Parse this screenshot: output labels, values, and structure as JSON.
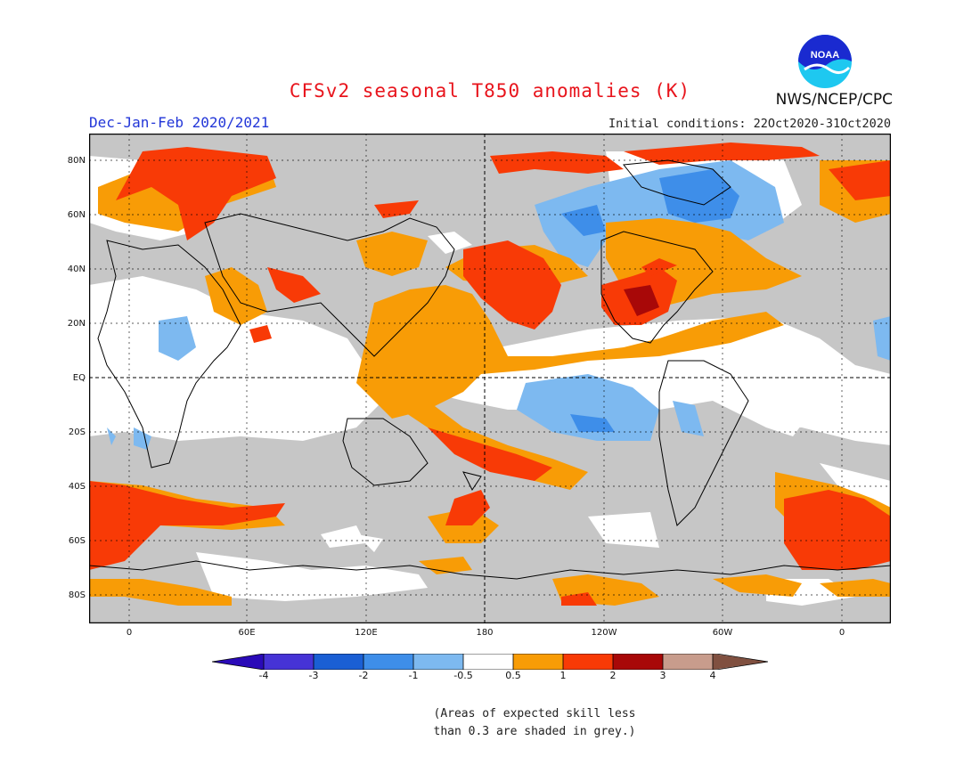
{
  "title": "CFSv2 seasonal T850 anomalies (K)",
  "season": "Dec-Jan-Feb 2020/2021",
  "initial_conditions": "Initial conditions: 22Oct2020-31Oct2020",
  "organization": "NWS/NCEP/CPC",
  "logo_text": "NOAA",
  "lat_labels": [
    "80N",
    "60N",
    "40N",
    "20N",
    "EQ",
    "20S",
    "40S",
    "60S",
    "80S"
  ],
  "lon_labels": [
    "0",
    "60E",
    "120E",
    "180",
    "120W",
    "60W",
    "0"
  ],
  "colorbar": {
    "labels": [
      "-4",
      "-3",
      "-2",
      "-1",
      "-0.5",
      "0.5",
      "1",
      "2",
      "3",
      "4"
    ],
    "colors": [
      "#2a0ab8",
      "#4633d6",
      "#1a5fd4",
      "#3e8ee9",
      "#7db9f0",
      "#ffffff",
      "#f89c06",
      "#f83a06",
      "#a80808",
      "#c89c8c",
      "#805040"
    ]
  },
  "note_line1": "(Areas of expected skill less",
  "note_line2": "than 0.3 are shaded in grey.)"
}
